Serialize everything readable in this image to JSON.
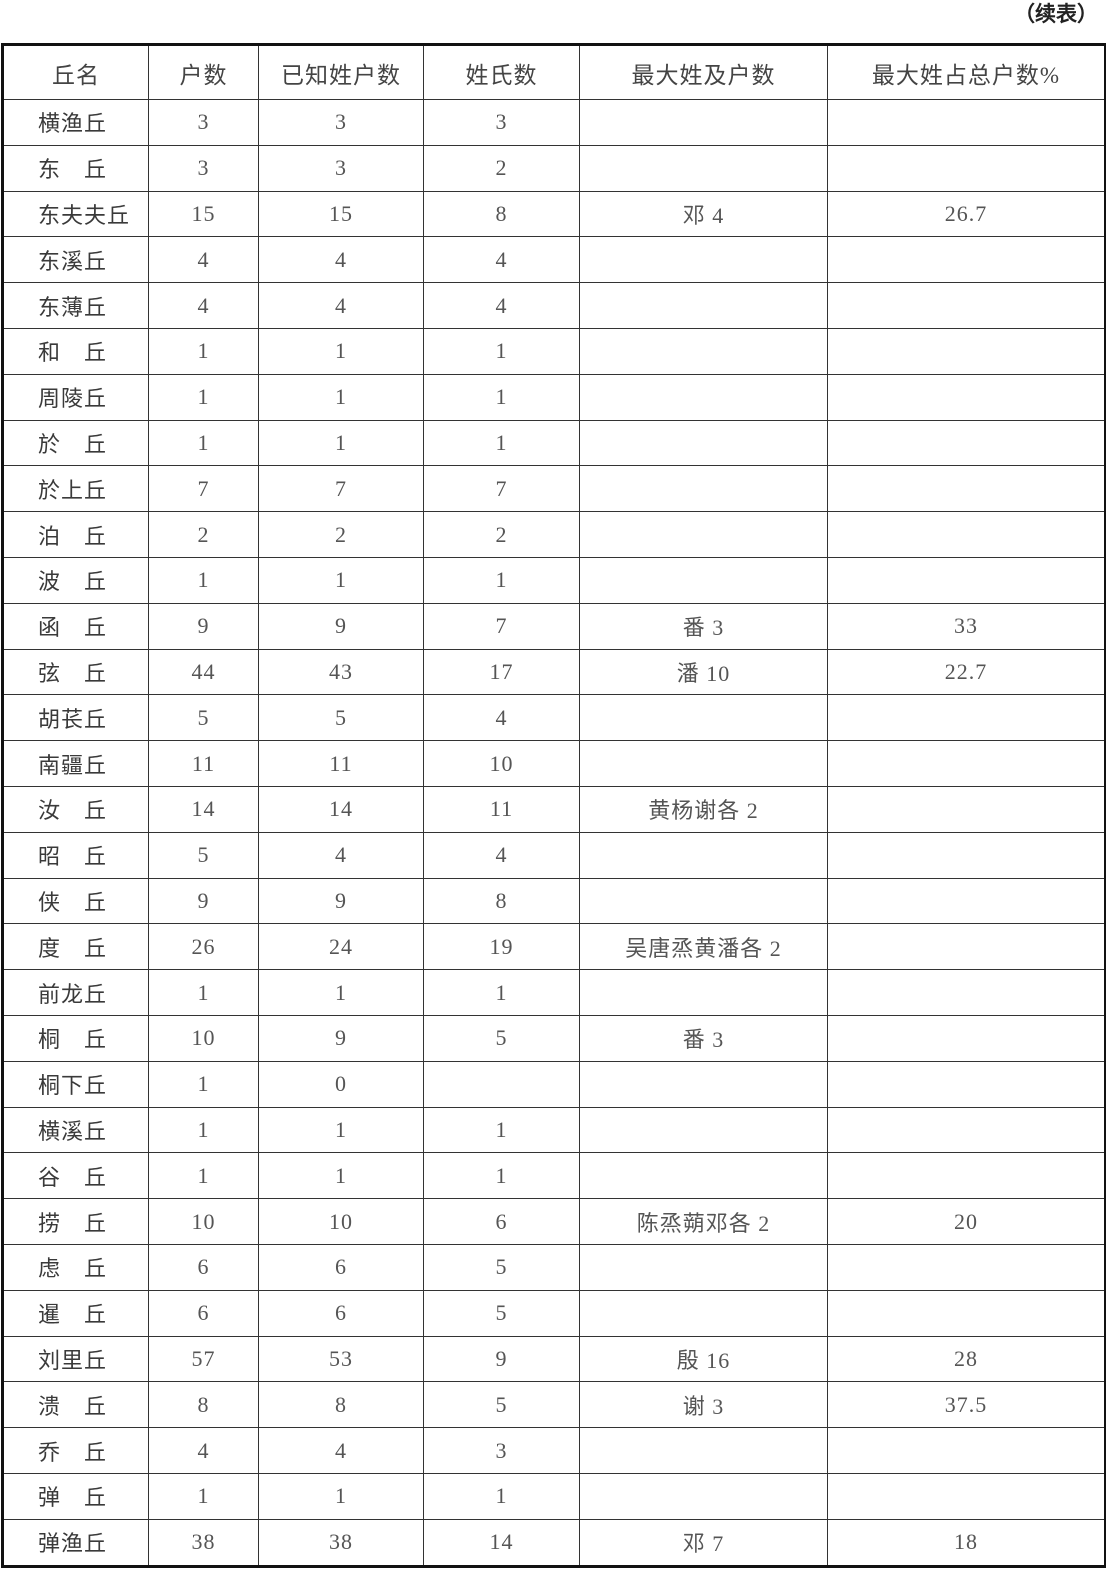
{
  "continued_label": "（续表）",
  "headers": [
    "丘名",
    "户数",
    "已知姓户数",
    "姓氏数",
    "最大姓及户数",
    "最大姓占总户数%"
  ],
  "rows": [
    [
      "横渔丘",
      "3",
      "3",
      "3",
      "",
      ""
    ],
    [
      "东　丘",
      "3",
      "3",
      "2",
      "",
      ""
    ],
    [
      "东夫夫丘",
      "15",
      "15",
      "8",
      "邓 4",
      "26.7"
    ],
    [
      "东溪丘",
      "4",
      "4",
      "4",
      "",
      ""
    ],
    [
      "东薄丘",
      "4",
      "4",
      "4",
      "",
      ""
    ],
    [
      "和　丘",
      "1",
      "1",
      "1",
      "",
      ""
    ],
    [
      "周陵丘",
      "1",
      "1",
      "1",
      "",
      ""
    ],
    [
      "於　丘",
      "1",
      "1",
      "1",
      "",
      ""
    ],
    [
      "於上丘",
      "7",
      "7",
      "7",
      "",
      ""
    ],
    [
      "泊　丘",
      "2",
      "2",
      "2",
      "",
      ""
    ],
    [
      "波　丘",
      "1",
      "1",
      "1",
      "",
      ""
    ],
    [
      "函　丘",
      "9",
      "9",
      "7",
      "番 3",
      "33"
    ],
    [
      "弦　丘",
      "44",
      "43",
      "17",
      "潘 10",
      "22.7"
    ],
    [
      "胡苌丘",
      "5",
      "5",
      "4",
      "",
      ""
    ],
    [
      "南疆丘",
      "11",
      "11",
      "10",
      "",
      ""
    ],
    [
      "汝　丘",
      "14",
      "14",
      "11",
      "黄杨谢各 2",
      ""
    ],
    [
      "昭　丘",
      "5",
      "4",
      "4",
      "",
      ""
    ],
    [
      "侠　丘",
      "9",
      "9",
      "8",
      "",
      ""
    ],
    [
      "度　丘",
      "26",
      "24",
      "19",
      "吴唐烝黄潘各 2",
      ""
    ],
    [
      "前龙丘",
      "1",
      "1",
      "1",
      "",
      ""
    ],
    [
      "桐　丘",
      "10",
      "9",
      "5",
      "番 3",
      ""
    ],
    [
      "桐下丘",
      "1",
      "0",
      "",
      "",
      ""
    ],
    [
      "横溪丘",
      "1",
      "1",
      "1",
      "",
      ""
    ],
    [
      "谷　丘",
      "1",
      "1",
      "1",
      "",
      ""
    ],
    [
      "捞　丘",
      "10",
      "10",
      "6",
      "陈烝蒴邓各 2",
      "20"
    ],
    [
      "虑　丘",
      "6",
      "6",
      "5",
      "",
      ""
    ],
    [
      "暹　丘",
      "6",
      "6",
      "5",
      "",
      ""
    ],
    [
      "刘里丘",
      "57",
      "53",
      "9",
      "殷 16",
      "28"
    ],
    [
      "溃　丘",
      "8",
      "8",
      "5",
      "谢 3",
      "37.5"
    ],
    [
      "乔　丘",
      "4",
      "4",
      "3",
      "",
      ""
    ],
    [
      "弹　丘",
      "1",
      "1",
      "1",
      "",
      ""
    ],
    [
      "弹渔丘",
      "38",
      "38",
      "14",
      "邓 7",
      "18"
    ]
  ]
}
